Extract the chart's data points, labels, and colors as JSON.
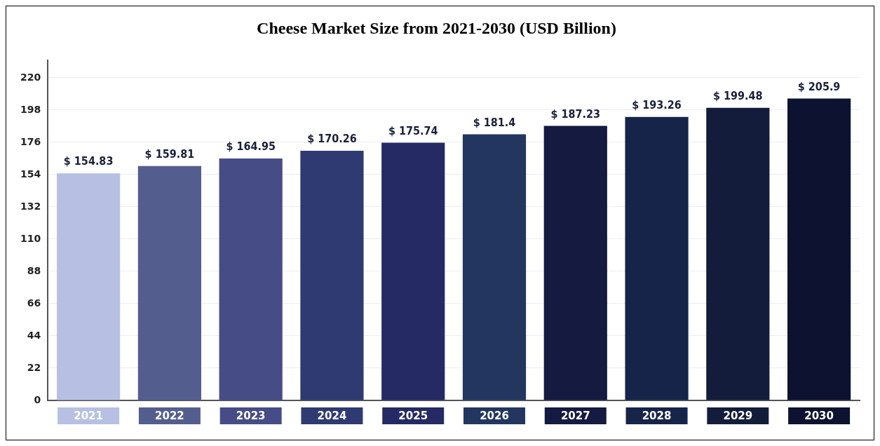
{
  "chart_data": {
    "type": "bar",
    "title": "Cheese Market Size from 2021-2030 (USD Billion)",
    "categories": [
      "2021",
      "2022",
      "2023",
      "2024",
      "2025",
      "2026",
      "2027",
      "2028",
      "2029",
      "2030"
    ],
    "values": [
      154.83,
      159.81,
      164.95,
      170.26,
      175.74,
      181.4,
      187.23,
      193.26,
      199.48,
      205.9
    ],
    "colors": [
      "#b7c0e3",
      "#545e8e",
      "#464c86",
      "#2f3a72",
      "#252a64",
      "#223660",
      "#141a40",
      "#16244a",
      "#141c3c",
      "#0c1230"
    ],
    "value_labels": [
      "$ 154.83",
      "$ 159.81",
      "$ 164.95",
      "$ 170.26",
      "$ 175.74",
      "$ 181.4",
      "$ 187.23",
      "$ 193.26",
      "$ 199.48",
      "$ 205.9"
    ],
    "ylim": [
      0,
      232
    ],
    "yticks": [
      0,
      22,
      44,
      66,
      88,
      110,
      132,
      154,
      176,
      198,
      220
    ],
    "grid": "y",
    "legend": false
  }
}
